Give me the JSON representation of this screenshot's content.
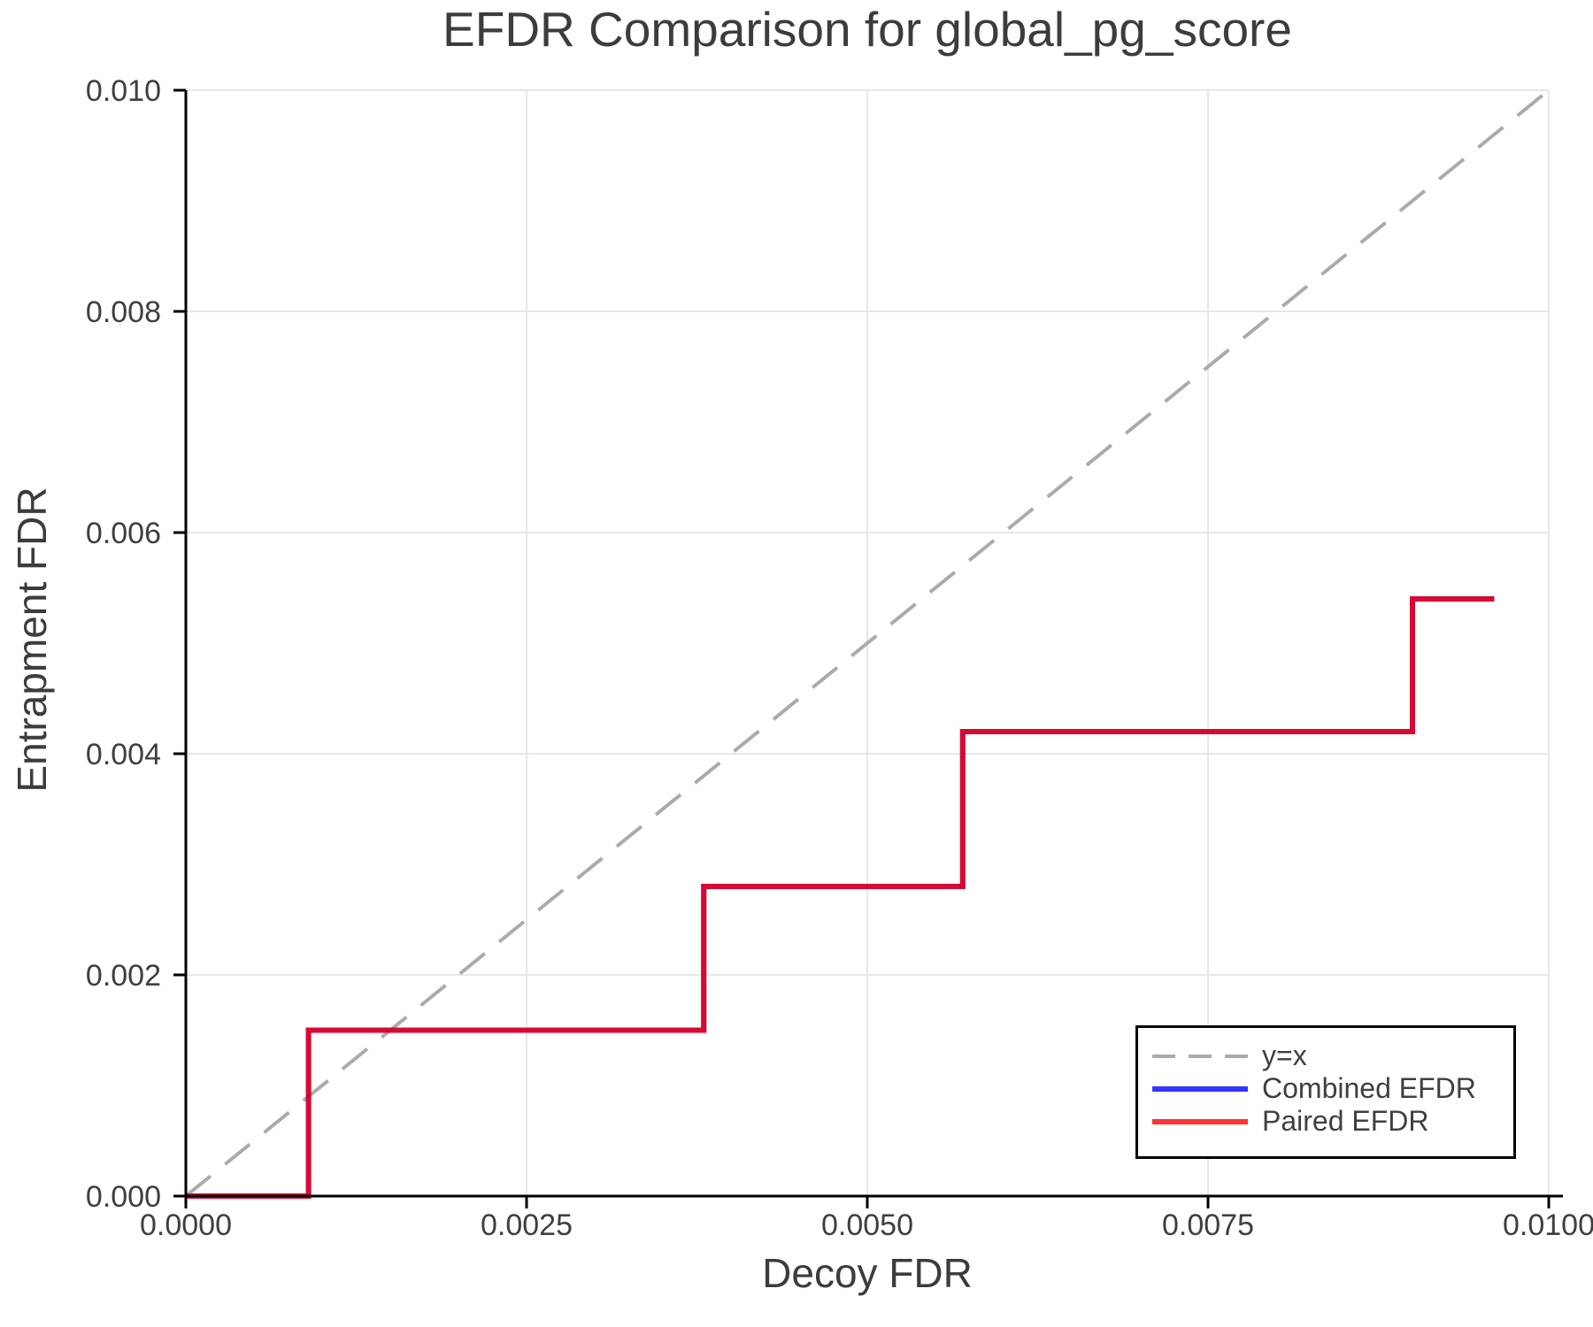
{
  "title": "EFDR Comparison for global_pg_score",
  "axes": {
    "x_label": "Decoy FDR",
    "y_label": "Entrapment FDR"
  },
  "legend": {
    "position": "lower right",
    "items": [
      {
        "label": "y=x"
      },
      {
        "label": "Combined EFDR"
      },
      {
        "label": "Paired EFDR"
      }
    ]
  },
  "colors": {
    "background": "#ffffff",
    "text": "#3f3f3f",
    "gridline": "#e7e7e7",
    "axis_spine": "#000000",
    "identity_line": "#ababab",
    "combined_efdr": "#0000ff",
    "paired_efdr": "#ff0000",
    "legend_border": "#000000"
  },
  "chart_data": {
    "type": "line",
    "title": "EFDR Comparison for global_pg_score",
    "xlabel": "Decoy FDR",
    "ylabel": "Entrapment FDR",
    "xlim": [
      0.0,
      0.01
    ],
    "ylim": [
      0.0,
      0.01
    ],
    "grid": true,
    "legend_position": "lower right",
    "x_ticks": {
      "values": [
        0.0,
        0.0025,
        0.005,
        0.0075,
        0.01
      ],
      "labels": [
        "0.0000",
        "0.0025",
        "0.0050",
        "0.0075",
        "0.0100"
      ]
    },
    "y_ticks": {
      "values": [
        0.0,
        0.002,
        0.004,
        0.006,
        0.008,
        0.01
      ],
      "labels": [
        "0.000",
        "0.002",
        "0.004",
        "0.006",
        "0.008",
        "0.010"
      ]
    },
    "identity_line": {
      "label": "y=x",
      "color": "#ababab",
      "style": "dashed",
      "from": [
        0.0,
        0.0
      ],
      "to": [
        0.01,
        0.01
      ]
    },
    "series": [
      {
        "name": "Combined EFDR",
        "color": "#0000ff",
        "opacity": 0.8,
        "step_points": [
          [
            0.0,
            0.0
          ],
          [
            0.0009,
            0.0
          ],
          [
            0.0009,
            0.0015
          ],
          [
            0.0038,
            0.0015
          ],
          [
            0.0038,
            0.0028
          ],
          [
            0.0057,
            0.0028
          ],
          [
            0.0057,
            0.0042
          ],
          [
            0.009,
            0.0042
          ],
          [
            0.009,
            0.0054
          ],
          [
            0.0096,
            0.0054
          ]
        ]
      },
      {
        "name": "Paired EFDR",
        "color": "#ff0000",
        "opacity": 0.8,
        "step_points": [
          [
            0.0,
            0.0
          ],
          [
            0.0009,
            0.0
          ],
          [
            0.0009,
            0.0015
          ],
          [
            0.0038,
            0.0015
          ],
          [
            0.0038,
            0.0028
          ],
          [
            0.0057,
            0.0028
          ],
          [
            0.0057,
            0.0042
          ],
          [
            0.009,
            0.0042
          ],
          [
            0.009,
            0.0054
          ],
          [
            0.0096,
            0.0054
          ]
        ]
      }
    ]
  }
}
